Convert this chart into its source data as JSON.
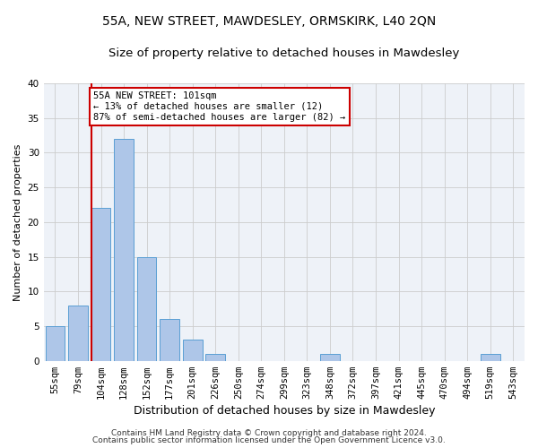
{
  "title1": "55A, NEW STREET, MAWDESLEY, ORMSKIRK, L40 2QN",
  "title2": "Size of property relative to detached houses in Mawdesley",
  "xlabel": "Distribution of detached houses by size in Mawdesley",
  "ylabel": "Number of detached properties",
  "categories": [
    "55sqm",
    "79sqm",
    "104sqm",
    "128sqm",
    "152sqm",
    "177sqm",
    "201sqm",
    "226sqm",
    "250sqm",
    "274sqm",
    "299sqm",
    "323sqm",
    "348sqm",
    "372sqm",
    "397sqm",
    "421sqm",
    "445sqm",
    "470sqm",
    "494sqm",
    "519sqm",
    "543sqm"
  ],
  "values": [
    5,
    8,
    22,
    32,
    15,
    6,
    3,
    1,
    0,
    0,
    0,
    0,
    1,
    0,
    0,
    0,
    0,
    0,
    0,
    1,
    0
  ],
  "bar_color": "#aec6e8",
  "bar_edge_color": "#5a9fd4",
  "vline_index": 2,
  "vline_color": "#cc0000",
  "annotation_line1": "55A NEW STREET: 101sqm",
  "annotation_line2": "← 13% of detached houses are smaller (12)",
  "annotation_line3": "87% of semi-detached houses are larger (82) →",
  "annotation_box_color": "#cc0000",
  "ylim": [
    0,
    40
  ],
  "yticks": [
    0,
    5,
    10,
    15,
    20,
    25,
    30,
    35,
    40
  ],
  "grid_color": "#cccccc",
  "bg_color": "#eef2f8",
  "footer1": "Contains HM Land Registry data © Crown copyright and database right 2024.",
  "footer2": "Contains public sector information licensed under the Open Government Licence v3.0.",
  "title1_fontsize": 10,
  "title2_fontsize": 9.5,
  "xlabel_fontsize": 9,
  "ylabel_fontsize": 8,
  "tick_fontsize": 7.5,
  "annot_fontsize": 7.5,
  "footer_fontsize": 6.5
}
